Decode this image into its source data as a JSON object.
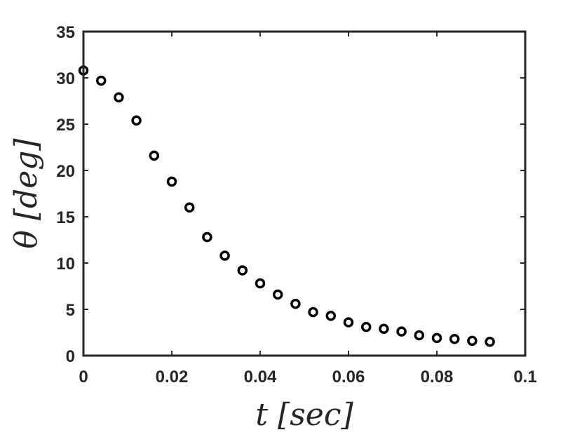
{
  "chart_data": {
    "type": "scatter",
    "xlabel": "t [sec]",
    "ylabel": "θ [deg]",
    "xlim": [
      0,
      0.1
    ],
    "ylim": [
      0,
      35
    ],
    "xticks": [
      0,
      0.02,
      0.04,
      0.06,
      0.08,
      0.1
    ],
    "xtick_labels": [
      "0",
      "0.02",
      "0.04",
      "0.06",
      "0.08",
      "0.1"
    ],
    "yticks": [
      0,
      5,
      10,
      15,
      20,
      25,
      30,
      35
    ],
    "ytick_labels": [
      "0",
      "5",
      "10",
      "15",
      "20",
      "25",
      "30",
      "35"
    ],
    "grid": false,
    "marker": "open-circle",
    "marker_color": "#000000",
    "axis_color": "#262626",
    "points": {
      "x": [
        0,
        0.004,
        0.008,
        0.012,
        0.016,
        0.02,
        0.024,
        0.028,
        0.032,
        0.036,
        0.04,
        0.044,
        0.048,
        0.052,
        0.056,
        0.06,
        0.064,
        0.068,
        0.072,
        0.076,
        0.08,
        0.084,
        0.088,
        0.092
      ],
      "y": [
        30.8,
        29.7,
        27.9,
        25.4,
        21.6,
        18.8,
        16.0,
        12.8,
        10.8,
        9.2,
        7.8,
        6.6,
        5.6,
        4.7,
        4.3,
        3.6,
        3.1,
        2.9,
        2.6,
        2.2,
        1.9,
        1.8,
        1.6,
        1.5
      ]
    }
  }
}
